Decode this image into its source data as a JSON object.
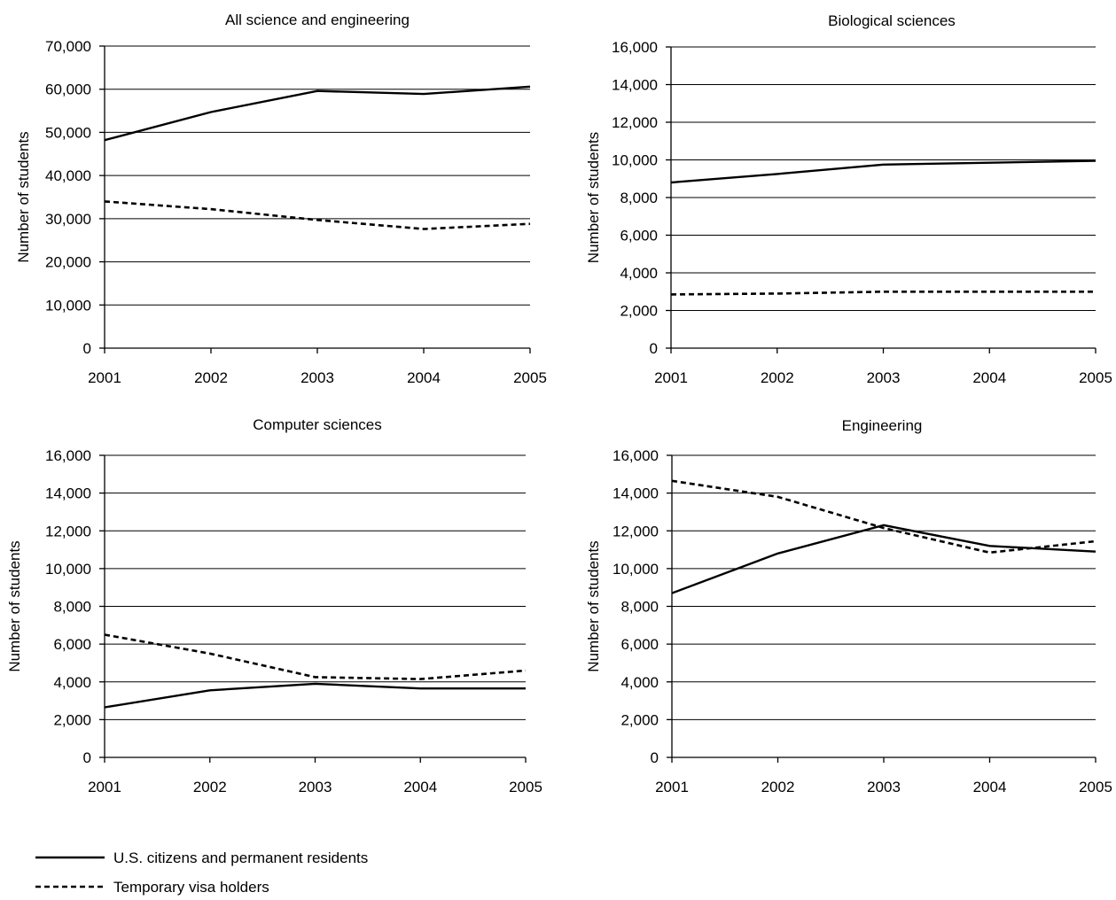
{
  "legend": [
    {
      "name": "U.S. citizens and permanent residents",
      "style": "solid"
    },
    {
      "name": "Temporary visa holders",
      "style": "dashed"
    }
  ],
  "chart_data": [
    {
      "type": "line",
      "title": "All science and engineering",
      "ylabel": "Number of students",
      "xlabel": "",
      "x": [
        2001,
        2002,
        2003,
        2004,
        2005
      ],
      "ylim": [
        0,
        70000
      ],
      "yticks": [
        0,
        10000,
        20000,
        30000,
        40000,
        50000,
        60000,
        70000
      ],
      "ytick_labels": [
        "0",
        "10,000",
        "20,000",
        "30,000",
        "40,000",
        "50,000",
        "60,000",
        "70,000"
      ],
      "grid": true,
      "series": [
        {
          "name": "U.S. citizens and permanent residents",
          "style": "solid",
          "values": [
            48200,
            54700,
            59600,
            58900,
            60600
          ]
        },
        {
          "name": "Temporary visa holders",
          "style": "dashed",
          "values": [
            34000,
            32200,
            29700,
            27600,
            28800
          ]
        }
      ]
    },
    {
      "type": "line",
      "title": "Biological sciences",
      "ylabel": "Number of students",
      "xlabel": "",
      "x": [
        2001,
        2002,
        2003,
        2004,
        2005
      ],
      "ylim": [
        0,
        16000
      ],
      "yticks": [
        0,
        2000,
        4000,
        6000,
        8000,
        10000,
        12000,
        14000,
        16000
      ],
      "ytick_labels": [
        "0",
        "2,000",
        "4,000",
        "6,000",
        "8,000",
        "10,000",
        "12,000",
        "14,000",
        "16,000"
      ],
      "grid": true,
      "series": [
        {
          "name": "U.S. citizens and permanent residents",
          "style": "solid",
          "values": [
            8800,
            9250,
            9750,
            9850,
            9950
          ]
        },
        {
          "name": "Temporary visa holders",
          "style": "dashed",
          "values": [
            2850,
            2900,
            3000,
            3000,
            3000
          ]
        }
      ]
    },
    {
      "type": "line",
      "title": "Computer sciences",
      "ylabel": "Number of students",
      "xlabel": "",
      "x": [
        2001,
        2002,
        2003,
        2004,
        2005
      ],
      "ylim": [
        0,
        16000
      ],
      "yticks": [
        0,
        2000,
        4000,
        6000,
        8000,
        10000,
        12000,
        14000,
        16000
      ],
      "ytick_labels": [
        "0",
        "2,000",
        "4,000",
        "6,000",
        "8,000",
        "10,000",
        "12,000",
        "14,000",
        "16,000"
      ],
      "grid": true,
      "series": [
        {
          "name": "U.S. citizens and permanent residents",
          "style": "solid",
          "values": [
            2650,
            3550,
            3900,
            3650,
            3650
          ]
        },
        {
          "name": "Temporary visa holders",
          "style": "dashed",
          "values": [
            6500,
            5500,
            4250,
            4150,
            4600
          ]
        }
      ]
    },
    {
      "type": "line",
      "title": "Engineering",
      "ylabel": "Number of students",
      "xlabel": "",
      "x": [
        2001,
        2002,
        2003,
        2004,
        2005
      ],
      "ylim": [
        0,
        16000
      ],
      "yticks": [
        0,
        2000,
        4000,
        6000,
        8000,
        10000,
        12000,
        14000,
        16000
      ],
      "ytick_labels": [
        "0",
        "2,000",
        "4,000",
        "6,000",
        "8,000",
        "10,000",
        "12,000",
        "14,000",
        "16,000"
      ],
      "grid": true,
      "series": [
        {
          "name": "U.S. citizens and permanent residents",
          "style": "solid",
          "values": [
            8700,
            10800,
            12300,
            11200,
            10900
          ]
        },
        {
          "name": "Temporary visa holders",
          "style": "dashed",
          "values": [
            14650,
            13800,
            12150,
            10850,
            11450
          ]
        }
      ]
    }
  ]
}
